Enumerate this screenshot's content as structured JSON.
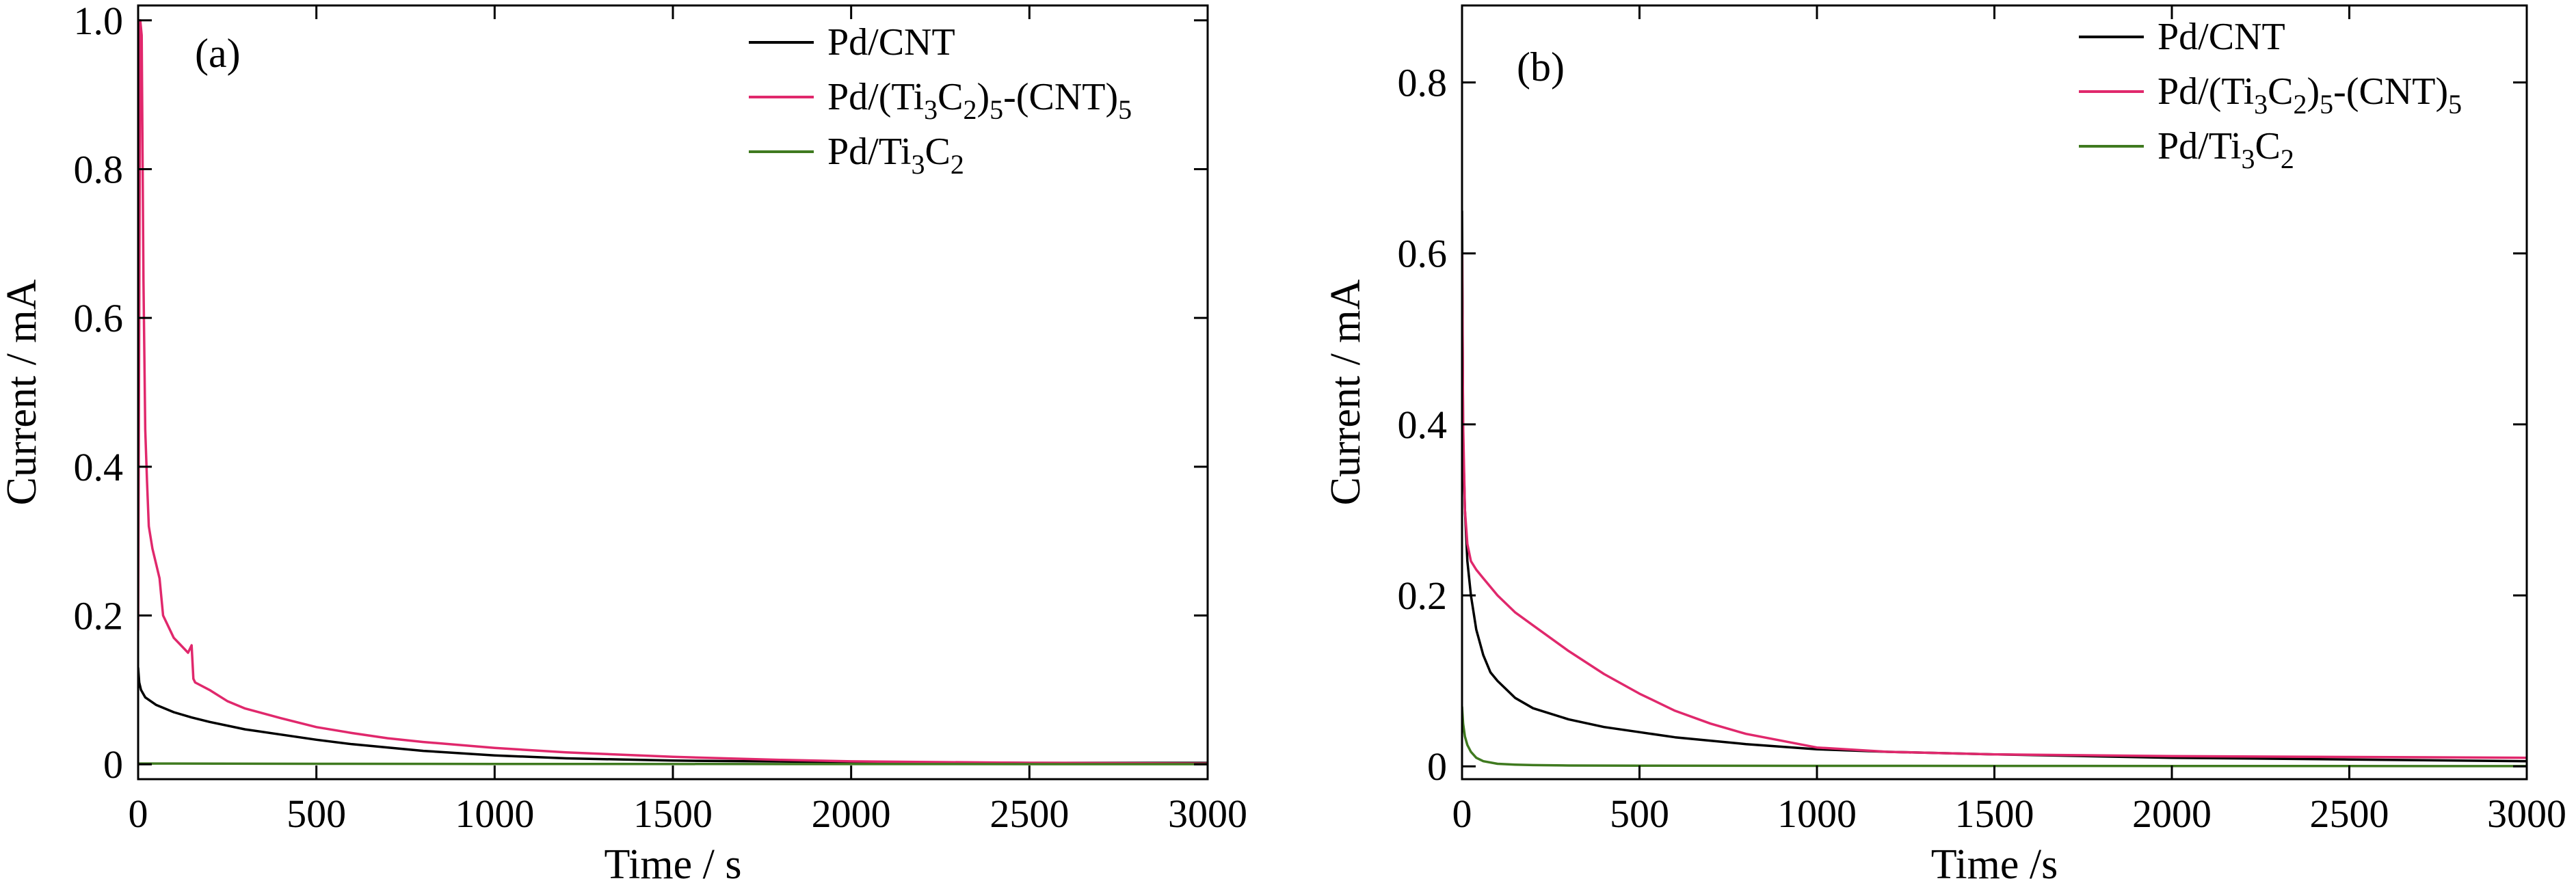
{
  "chart_data": [
    {
      "type": "line",
      "panel_label": "(a)",
      "xlabel": "Time / s",
      "ylabel": "Current / mA",
      "xlim": [
        0,
        3000
      ],
      "ylim": [
        -0.02,
        1.02
      ],
      "xticks": [
        0,
        500,
        1000,
        1500,
        2000,
        2500,
        3000
      ],
      "yticks": [
        0,
        0.2,
        0.4,
        0.6,
        0.8,
        1.0
      ],
      "ytick_labels": [
        "0",
        "0.2",
        "0.4",
        "0.6",
        "0.8",
        "1.0"
      ],
      "legend_position": "top-right",
      "series": [
        {
          "name": "Pd/CNT",
          "color": "#000000",
          "x": [
            0,
            3,
            8,
            20,
            50,
            100,
            150,
            200,
            300,
            400,
            500,
            600,
            800,
            1000,
            1200,
            1500,
            2000,
            2500,
            3000
          ],
          "y": [
            0.13,
            0.11,
            0.1,
            0.09,
            0.08,
            0.07,
            0.063,
            0.057,
            0.047,
            0.04,
            0.033,
            0.027,
            0.018,
            0.012,
            0.008,
            0.005,
            0.003,
            0.002,
            0.002
          ]
        },
        {
          "name": "Pd/(Ti3C2)5-(CNT)5",
          "color": "#e0286c",
          "x": [
            0,
            3,
            6,
            10,
            15,
            20,
            25,
            30,
            40,
            50,
            60,
            70,
            80,
            100,
            120,
            140,
            150,
            155,
            160,
            200,
            250,
            300,
            400,
            500,
            600,
            700,
            800,
            1000,
            1200,
            1500,
            1800,
            2000,
            2500,
            3000
          ],
          "y": [
            0.18,
            0.6,
            1.0,
            0.98,
            0.65,
            0.45,
            0.38,
            0.32,
            0.29,
            0.27,
            0.25,
            0.2,
            0.19,
            0.17,
            0.16,
            0.15,
            0.16,
            0.115,
            0.11,
            0.1,
            0.085,
            0.075,
            0.062,
            0.05,
            0.042,
            0.035,
            0.03,
            0.022,
            0.016,
            0.01,
            0.006,
            0.004,
            0.002,
            0.001
          ]
        },
        {
          "name": "Pd/Ti3C2",
          "color": "#3f7a1f",
          "x": [
            0,
            500,
            1000,
            2000,
            3000
          ],
          "y": [
            0.001,
            0.0007,
            0.0005,
            0.0003,
            0.0002
          ]
        }
      ]
    },
    {
      "type": "line",
      "panel_label": "(b)",
      "xlabel": "Time /s",
      "ylabel": "Current / mA",
      "xlim": [
        0,
        3000
      ],
      "ylim": [
        -0.015,
        0.89
      ],
      "xticks": [
        0,
        500,
        1000,
        1500,
        2000,
        2500,
        3000
      ],
      "yticks": [
        0,
        0.2,
        0.4,
        0.6,
        0.8
      ],
      "ytick_labels": [
        "0",
        "0.2",
        "0.4",
        "0.6",
        "0.8"
      ],
      "legend_position": "top-right",
      "series": [
        {
          "name": "Pd/CNT",
          "color": "#000000",
          "x": [
            0,
            3,
            8,
            15,
            25,
            40,
            60,
            80,
            100,
            150,
            200,
            300,
            400,
            500,
            600,
            800,
            1000,
            1200,
            1500,
            2000,
            2500,
            3000
          ],
          "y": [
            0.65,
            0.38,
            0.3,
            0.24,
            0.2,
            0.16,
            0.13,
            0.11,
            0.1,
            0.08,
            0.068,
            0.055,
            0.046,
            0.04,
            0.034,
            0.026,
            0.02,
            0.017,
            0.014,
            0.01,
            0.008,
            0.006
          ]
        },
        {
          "name": "Pd/(Ti3C2)5-(CNT)5",
          "color": "#e0286c",
          "x": [
            0,
            3,
            8,
            15,
            25,
            40,
            60,
            100,
            150,
            200,
            300,
            400,
            500,
            600,
            700,
            800,
            1000,
            1200,
            1500,
            2000,
            2500,
            3000
          ],
          "y": [
            0.6,
            0.4,
            0.3,
            0.26,
            0.24,
            0.23,
            0.22,
            0.2,
            0.18,
            0.165,
            0.135,
            0.108,
            0.085,
            0.065,
            0.05,
            0.038,
            0.022,
            0.017,
            0.014,
            0.012,
            0.011,
            0.01
          ]
        },
        {
          "name": "Pd/Ti3C2",
          "color": "#3f7a1f",
          "x": [
            0,
            3,
            8,
            15,
            25,
            40,
            60,
            100,
            150,
            200,
            300,
            500,
            1000,
            2000,
            3000
          ],
          "y": [
            0.07,
            0.05,
            0.035,
            0.025,
            0.017,
            0.01,
            0.006,
            0.003,
            0.002,
            0.0015,
            0.001,
            0.0008,
            0.0006,
            0.0004,
            0.0003
          ]
        }
      ]
    }
  ]
}
